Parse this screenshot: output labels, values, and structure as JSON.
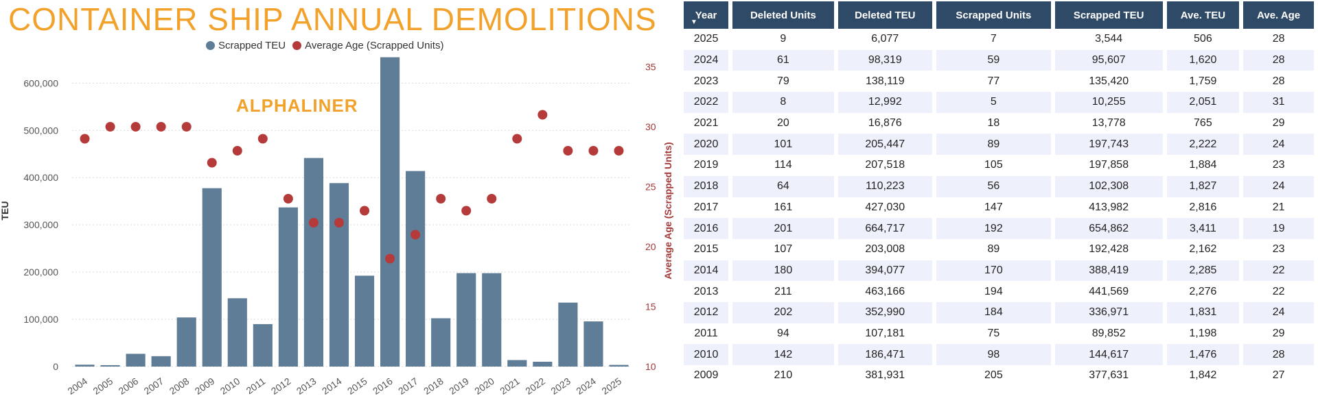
{
  "title": "CONTAINER SHIP ANNUAL DEMOLITIONS",
  "watermark": "ALPHALINER",
  "legend": [
    {
      "label": "Scrapped TEU",
      "color": "#5f7d96"
    },
    {
      "label": "Average Age (Scrapped Units)",
      "color": "#b53a3a"
    }
  ],
  "chart_data": {
    "type": "bar",
    "categories": [
      "2004",
      "2005",
      "2006",
      "2007",
      "2008",
      "2009",
      "2010",
      "2011",
      "2012",
      "2013",
      "2014",
      "2015",
      "2016",
      "2017",
      "2018",
      "2019",
      "2020",
      "2021",
      "2022",
      "2023",
      "2024",
      "2025"
    ],
    "series": [
      {
        "name": "Scrapped TEU",
        "kind": "bar",
        "axis": "left",
        "values": [
          4000,
          3000,
          27000,
          22000,
          104000,
          377631,
          144617,
          89852,
          336971,
          441569,
          388419,
          192428,
          654862,
          413982,
          102308,
          197858,
          197743,
          13778,
          10255,
          135420,
          95607,
          3544
        ]
      },
      {
        "name": "Average Age (Scrapped Units)",
        "kind": "scatter",
        "axis": "right",
        "values": [
          29,
          30,
          30,
          30,
          30,
          27,
          28,
          29,
          24,
          22,
          22,
          23,
          19,
          21,
          24,
          23,
          24,
          29,
          31,
          28,
          28,
          28
        ]
      }
    ],
    "ylabel": "TEU",
    "y2label": "Average Age (Scrapped Units)",
    "ylim": [
      0,
      660000
    ],
    "y2lim": [
      10,
      36
    ],
    "yticks": [
      0,
      100000,
      200000,
      300000,
      400000,
      500000,
      600000
    ],
    "yticklabels": [
      "0",
      "100,000",
      "200,000",
      "300,000",
      "400,000",
      "500,000",
      "600,000"
    ],
    "y2ticks": [
      10,
      15,
      20,
      25,
      30,
      35
    ],
    "y2ticklabels": [
      "10",
      "15",
      "20",
      "25",
      "30",
      "35"
    ],
    "colors": {
      "bar": "#5f7d96",
      "dot": "#b53a3a",
      "y2axis": "#a33a3a"
    }
  },
  "table": {
    "headers": [
      "Year",
      "Deleted Units",
      "Deleted TEU",
      "Scrapped Units",
      "Scrapped TEU",
      "Ave. TEU",
      "Ave. Age"
    ],
    "sort_icon": "sort-descending-icon",
    "rows": [
      [
        "2025",
        "9",
        "6,077",
        "7",
        "3,544",
        "506",
        "28"
      ],
      [
        "2024",
        "61",
        "98,319",
        "59",
        "95,607",
        "1,620",
        "28"
      ],
      [
        "2023",
        "79",
        "138,119",
        "77",
        "135,420",
        "1,759",
        "28"
      ],
      [
        "2022",
        "8",
        "12,992",
        "5",
        "10,255",
        "2,051",
        "31"
      ],
      [
        "2021",
        "20",
        "16,876",
        "18",
        "13,778",
        "765",
        "29"
      ],
      [
        "2020",
        "101",
        "205,447",
        "89",
        "197,743",
        "2,222",
        "24"
      ],
      [
        "2019",
        "114",
        "207,518",
        "105",
        "197,858",
        "1,884",
        "23"
      ],
      [
        "2018",
        "64",
        "110,223",
        "56",
        "102,308",
        "1,827",
        "24"
      ],
      [
        "2017",
        "161",
        "427,030",
        "147",
        "413,982",
        "2,816",
        "21"
      ],
      [
        "2016",
        "201",
        "664,717",
        "192",
        "654,862",
        "3,411",
        "19"
      ],
      [
        "2015",
        "107",
        "203,008",
        "89",
        "192,428",
        "2,162",
        "23"
      ],
      [
        "2014",
        "180",
        "394,077",
        "170",
        "388,419",
        "2,285",
        "22"
      ],
      [
        "2013",
        "211",
        "463,166",
        "194",
        "441,569",
        "2,276",
        "22"
      ],
      [
        "2012",
        "202",
        "352,990",
        "184",
        "336,971",
        "1,831",
        "24"
      ],
      [
        "2011",
        "94",
        "107,181",
        "75",
        "89,852",
        "1,198",
        "29"
      ],
      [
        "2010",
        "142",
        "186,471",
        "98",
        "144,617",
        "1,476",
        "28"
      ],
      [
        "2009",
        "210",
        "381,931",
        "205",
        "377,631",
        "1,842",
        "27"
      ]
    ]
  }
}
